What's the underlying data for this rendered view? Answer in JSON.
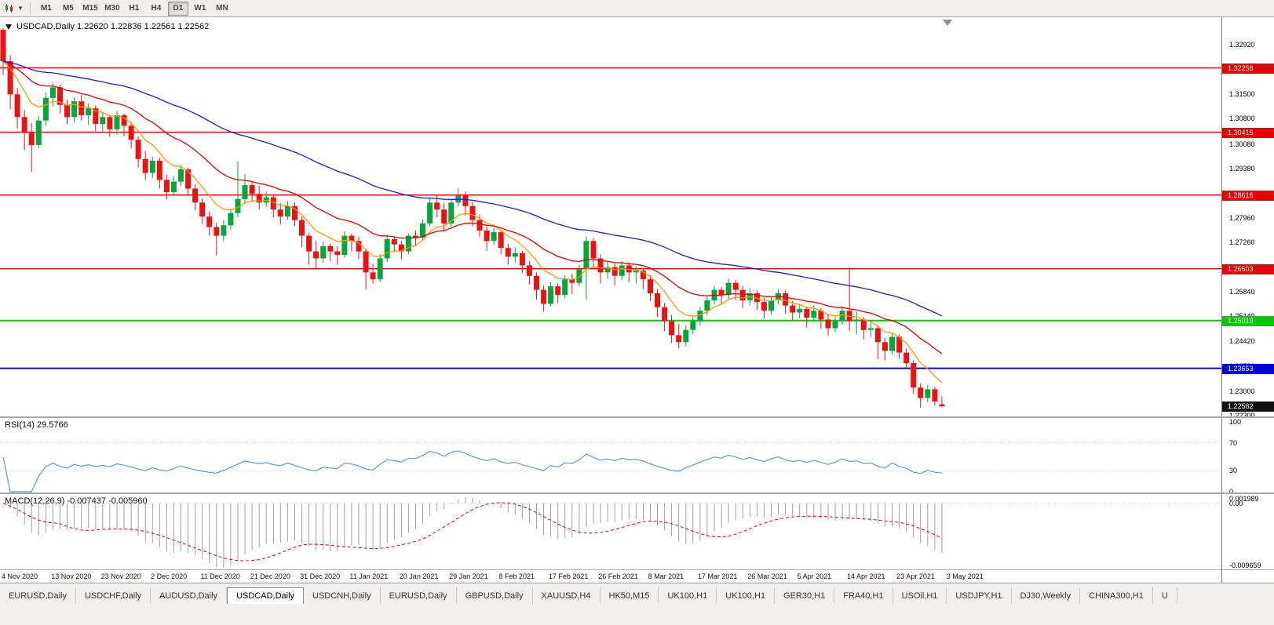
{
  "toolbar": {
    "timeframes": [
      "M1",
      "M5",
      "M15",
      "M30",
      "H1",
      "H4",
      "D1",
      "W1",
      "MN"
    ],
    "active_timeframe": "D1"
  },
  "chart": {
    "title": "USDCAD,Daily 1.22620 1.22836 1.22561 1.22562",
    "symbol": "USDCAD",
    "period": "Daily",
    "ohlc_display": {
      "open": "1.22620",
      "high": "1.22836",
      "low": "1.22561",
      "close": "1.22562"
    }
  },
  "price_axis": {
    "ticks": [
      "1.32920",
      "1.31500",
      "1.30800",
      "1.30080",
      "1.29380",
      "1.28660",
      "1.27960",
      "1.27260",
      "1.26540",
      "1.25840",
      "1.25140",
      "1.24420",
      "1.23720",
      "1.23000",
      "1.22300"
    ]
  },
  "current_price": {
    "label": "1.22562",
    "price": 1.22562,
    "badge_color": "#101010"
  },
  "rsi": {
    "label": "RSI(14) 29.5766",
    "name": "RSI(14)",
    "value": "29.5766",
    "ticks": [
      "100",
      "70",
      "30",
      "0"
    ],
    "levels": [
      70,
      30
    ],
    "color": "#5e9bd3"
  },
  "macd": {
    "label": "MACD(12,26,9) -0.007437 -0.005960",
    "name": "MACD(12,26,9)",
    "values": [
      "-0.007437",
      "-0.005960"
    ],
    "ticks": [
      "0.001989",
      "0.00",
      "-0.009659"
    ],
    "bar_color": "#9e9e9e",
    "signal_color": "#dd0000"
  },
  "tabs": {
    "active_index": 3,
    "items": [
      "EURUSD,Daily",
      "USDCHF,Daily",
      "AUDUSD,Daily",
      "USDCAD,Daily",
      "USDCNH,Daily",
      "EURUSD,Daily",
      "GBPUSD,Daily",
      "XAUUSD,H4",
      "HK50,M15",
      "UK100,H1",
      "UK100,H1",
      "GER30,H1",
      "FRA40,H1",
      "USOil,H1",
      "USDJPY,H1",
      "DJ30,Weekly",
      "CHINA300,H1",
      "U"
    ]
  },
  "chart_data": {
    "type": "candlestick",
    "symbol": "USDCAD",
    "timeframe": "Daily",
    "title": "USDCAD,Daily 1.22620 1.22836 1.22561 1.22562",
    "price_view": {
      "max": 1.3353,
      "min": 1.2225
    },
    "colors": {
      "up": "#00a83c",
      "down": "#ee1111"
    },
    "x_labels": [
      "4 Nov 2020",
      "13 Nov 2020",
      "23 Nov 2020",
      "2 Dec 2020",
      "11 Dec 2020",
      "21 Dec 2020",
      "31 Dec 2020",
      "11 Jan 2021",
      "20 Jan 2021",
      "29 Jan 2021",
      "8 Feb 2021",
      "17 Feb 2021",
      "26 Feb 2021",
      "8 Mar 2021",
      "17 Mar 2021",
      "26 Mar 2021",
      "5 Apr 2021",
      "14 Apr 2021",
      "23 Apr 2021",
      "3 May 2021"
    ],
    "horizontal_lines": [
      {
        "price": 1.32258,
        "label": "1.32258",
        "color": "#e60000",
        "width": 1.4
      },
      {
        "price": 1.30415,
        "label": "1.30415",
        "color": "#e60000",
        "width": 1.4
      },
      {
        "price": 1.28616,
        "label": "1.28616",
        "color": "#e60000",
        "width": 1.4
      },
      {
        "price": 1.26503,
        "label": "1.26503",
        "color": "#e60000",
        "width": 1.4
      },
      {
        "price": 1.25019,
        "label": "1.25019",
        "color": "#00ca00",
        "width": 2
      },
      {
        "price": 1.23653,
        "label": "1.23653",
        "color": "#0000dd",
        "width": 2
      }
    ],
    "moving_averages": [
      {
        "name": "MA fast",
        "period": 8,
        "method": "ema",
        "color": "#ff9900"
      },
      {
        "name": "MA mid",
        "period": 21,
        "method": "ema",
        "color": "#e00000"
      },
      {
        "name": "MA slow",
        "period": 55,
        "method": "ema",
        "color": "#1d1dcc"
      }
    ],
    "indicators": [
      {
        "name": "RSI",
        "params": "14",
        "value": "29.5766",
        "range": [
          0,
          100
        ],
        "levels": [
          70,
          30
        ]
      },
      {
        "name": "MACD",
        "params": "12,26,9",
        "values": [
          "-0.007437",
          "-0.005960"
        ],
        "axis": [
          "0.001989",
          "0.00",
          "-0.009659"
        ]
      }
    ],
    "candles": [
      [
        1.3335,
        1.334,
        1.3205,
        1.3245
      ],
      [
        1.3245,
        1.3262,
        1.3108,
        1.315
      ],
      [
        1.315,
        1.3168,
        1.3052,
        1.3085
      ],
      [
        1.3085,
        1.3105,
        1.299,
        1.304
      ],
      [
        1.304,
        1.3068,
        1.2928,
        1.3005
      ],
      [
        1.3005,
        1.3088,
        1.2995,
        1.3075
      ],
      [
        1.3075,
        1.3155,
        1.306,
        1.314
      ],
      [
        1.314,
        1.3182,
        1.3115,
        1.317
      ],
      [
        1.317,
        1.3178,
        1.3095,
        1.312
      ],
      [
        1.312,
        1.3135,
        1.3064,
        1.3085
      ],
      [
        1.3085,
        1.3142,
        1.307,
        1.313
      ],
      [
        1.313,
        1.3148,
        1.3075,
        1.309
      ],
      [
        1.309,
        1.3125,
        1.3062,
        1.311
      ],
      [
        1.311,
        1.3118,
        1.3045,
        1.3065
      ],
      [
        1.3065,
        1.3098,
        1.304,
        1.3085
      ],
      [
        1.3085,
        1.3092,
        1.3028,
        1.305
      ],
      [
        1.305,
        1.3102,
        1.3035,
        1.309
      ],
      [
        1.309,
        1.3095,
        1.303,
        1.306
      ],
      [
        1.306,
        1.3072,
        1.2995,
        1.302
      ],
      [
        1.302,
        1.303,
        1.294,
        1.2965
      ],
      [
        1.2965,
        1.2988,
        1.2905,
        1.2925
      ],
      [
        1.2925,
        1.2972,
        1.291,
        1.296
      ],
      [
        1.296,
        1.2968,
        1.288,
        1.2905
      ],
      [
        1.2905,
        1.292,
        1.285,
        1.287
      ],
      [
        1.287,
        1.2915,
        1.2858,
        1.29
      ],
      [
        1.29,
        1.2948,
        1.2888,
        1.2935
      ],
      [
        1.2935,
        1.294,
        1.286,
        1.288
      ],
      [
        1.288,
        1.2892,
        1.2818,
        1.284
      ],
      [
        1.284,
        1.2852,
        1.278,
        1.28
      ],
      [
        1.28,
        1.2815,
        1.2745,
        1.277
      ],
      [
        1.277,
        1.2782,
        1.2688,
        1.2745
      ],
      [
        1.2745,
        1.279,
        1.273,
        1.2775
      ],
      [
        1.2775,
        1.2822,
        1.2762,
        1.281
      ],
      [
        1.281,
        1.2958,
        1.2798,
        1.285
      ],
      [
        1.285,
        1.2922,
        1.2835,
        1.289
      ],
      [
        1.289,
        1.2902,
        1.2842,
        1.2865
      ],
      [
        1.2865,
        1.2888,
        1.282,
        1.284
      ],
      [
        1.284,
        1.2872,
        1.2828,
        1.2855
      ],
      [
        1.2855,
        1.2862,
        1.2798,
        1.282
      ],
      [
        1.282,
        1.2838,
        1.2778,
        1.28
      ],
      [
        1.28,
        1.2845,
        1.279,
        1.283
      ],
      [
        1.283,
        1.284,
        1.2772,
        1.279
      ],
      [
        1.279,
        1.28,
        1.2712,
        1.2745
      ],
      [
        1.2745,
        1.2752,
        1.2662,
        1.27
      ],
      [
        1.27,
        1.273,
        1.2652,
        1.268
      ],
      [
        1.268,
        1.2728,
        1.2668,
        1.2715
      ],
      [
        1.2715,
        1.2722,
        1.2672,
        1.27
      ],
      [
        1.27,
        1.2715,
        1.2662,
        1.269
      ],
      [
        1.269,
        1.2758,
        1.2682,
        1.2745
      ],
      [
        1.2745,
        1.2752,
        1.27,
        1.273
      ],
      [
        1.273,
        1.2742,
        1.2678,
        1.27
      ],
      [
        1.27,
        1.2708,
        1.2592,
        1.264
      ],
      [
        1.264,
        1.2665,
        1.2608,
        1.262
      ],
      [
        1.262,
        1.2692,
        1.2612,
        1.268
      ],
      [
        1.268,
        1.2748,
        1.267,
        1.2735
      ],
      [
        1.2735,
        1.2742,
        1.2698,
        1.272
      ],
      [
        1.272,
        1.273,
        1.2678,
        1.27
      ],
      [
        1.27,
        1.2752,
        1.2692,
        1.2745
      ],
      [
        1.2745,
        1.276,
        1.2715,
        1.274
      ],
      [
        1.274,
        1.2792,
        1.273,
        1.278
      ],
      [
        1.278,
        1.2852,
        1.2772,
        1.284
      ],
      [
        1.284,
        1.2862,
        1.2798,
        1.282
      ],
      [
        1.282,
        1.284,
        1.2758,
        1.278
      ],
      [
        1.278,
        1.2848,
        1.277,
        1.284
      ],
      [
        1.284,
        1.288,
        1.2828,
        1.286
      ],
      [
        1.286,
        1.2872,
        1.2802,
        1.283
      ],
      [
        1.283,
        1.2842,
        1.2772,
        1.279
      ],
      [
        1.279,
        1.2805,
        1.2742,
        1.276
      ],
      [
        1.276,
        1.2772,
        1.2702,
        1.273
      ],
      [
        1.273,
        1.2768,
        1.2718,
        1.2755
      ],
      [
        1.2755,
        1.2762,
        1.2692,
        1.271
      ],
      [
        1.271,
        1.2722,
        1.2662,
        1.2685
      ],
      [
        1.2685,
        1.2712,
        1.2668,
        1.2695
      ],
      [
        1.2695,
        1.2702,
        1.2638,
        1.266
      ],
      [
        1.266,
        1.2672,
        1.2605,
        1.263
      ],
      [
        1.263,
        1.264,
        1.2562,
        1.259
      ],
      [
        1.259,
        1.2602,
        1.2528,
        1.255
      ],
      [
        1.255,
        1.2612,
        1.2542,
        1.26
      ],
      [
        1.26,
        1.2608,
        1.2552,
        1.2575
      ],
      [
        1.2575,
        1.2632,
        1.2565,
        1.262
      ],
      [
        1.262,
        1.2635,
        1.2578,
        1.261
      ],
      [
        1.261,
        1.2662,
        1.26,
        1.265
      ],
      [
        1.265,
        1.2742,
        1.2562,
        1.273
      ],
      [
        1.273,
        1.2738,
        1.2652,
        1.268
      ],
      [
        1.268,
        1.2692,
        1.2608,
        1.264
      ],
      [
        1.264,
        1.2672,
        1.2622,
        1.2655
      ],
      [
        1.2655,
        1.2665,
        1.2602,
        1.263
      ],
      [
        1.263,
        1.2672,
        1.2618,
        1.266
      ],
      [
        1.266,
        1.2668,
        1.2612,
        1.264
      ],
      [
        1.264,
        1.2658,
        1.2608,
        1.2645
      ],
      [
        1.2645,
        1.2652,
        1.2592,
        1.262
      ],
      [
        1.262,
        1.2632,
        1.2558,
        1.258
      ],
      [
        1.258,
        1.2592,
        1.2512,
        1.254
      ],
      [
        1.254,
        1.2552,
        1.2472,
        1.25
      ],
      [
        1.25,
        1.2518,
        1.2438,
        1.246
      ],
      [
        1.246,
        1.2492,
        1.2422,
        1.244
      ],
      [
        1.244,
        1.2488,
        1.2428,
        1.2475
      ],
      [
        1.2475,
        1.2512,
        1.2462,
        1.25
      ],
      [
        1.25,
        1.2542,
        1.2488,
        1.253
      ],
      [
        1.253,
        1.2572,
        1.2518,
        1.256
      ],
      [
        1.256,
        1.2602,
        1.2548,
        1.259
      ],
      [
        1.259,
        1.2598,
        1.2548,
        1.2575
      ],
      [
        1.2575,
        1.2622,
        1.2562,
        1.261
      ],
      [
        1.261,
        1.2618,
        1.2562,
        1.259
      ],
      [
        1.259,
        1.2602,
        1.2538,
        1.256
      ],
      [
        1.256,
        1.2595,
        1.2545,
        1.258
      ],
      [
        1.258,
        1.2588,
        1.2532,
        1.2555
      ],
      [
        1.2555,
        1.2568,
        1.2508,
        1.253
      ],
      [
        1.253,
        1.2572,
        1.252,
        1.256
      ],
      [
        1.256,
        1.2592,
        1.2548,
        1.258
      ],
      [
        1.258,
        1.2588,
        1.2522,
        1.2545
      ],
      [
        1.2545,
        1.2558,
        1.2502,
        1.2525
      ],
      [
        1.2525,
        1.2548,
        1.2508,
        1.2535
      ],
      [
        1.2535,
        1.2542,
        1.2482,
        1.251
      ],
      [
        1.251,
        1.2545,
        1.2498,
        1.253
      ],
      [
        1.253,
        1.2538,
        1.2478,
        1.2505
      ],
      [
        1.2505,
        1.2518,
        1.2458,
        1.248
      ],
      [
        1.248,
        1.2512,
        1.2468,
        1.25
      ],
      [
        1.25,
        1.2542,
        1.249,
        1.253
      ],
      [
        1.253,
        1.2654,
        1.2472,
        1.25
      ],
      [
        1.25,
        1.2528,
        1.2462,
        1.2505
      ],
      [
        1.2505,
        1.2512,
        1.2448,
        1.2475
      ],
      [
        1.2475,
        1.2502,
        1.2455,
        1.248
      ],
      [
        1.248,
        1.2488,
        1.2392,
        1.244
      ],
      [
        1.244,
        1.2452,
        1.2388,
        1.2415
      ],
      [
        1.2415,
        1.2468,
        1.2405,
        1.2455
      ],
      [
        1.2455,
        1.2462,
        1.2392,
        1.241
      ],
      [
        1.241,
        1.2422,
        1.2362,
        1.238
      ],
      [
        1.238,
        1.2388,
        1.2292,
        1.231
      ],
      [
        1.231,
        1.2322,
        1.2252,
        1.228
      ],
      [
        1.228,
        1.2318,
        1.2268,
        1.2305
      ],
      [
        1.2305,
        1.2312,
        1.2258,
        1.227
      ],
      [
        1.2262,
        1.2284,
        1.2256,
        1.2256
      ]
    ]
  }
}
